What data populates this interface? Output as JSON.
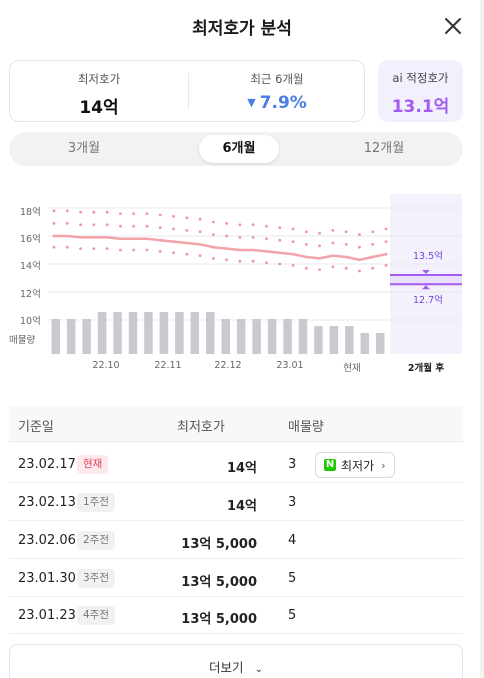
{
  "header": {
    "title": "최저호가 분석"
  },
  "summary": {
    "lowest_label": "최저호가",
    "lowest_value": "14억",
    "recent_label": "최근 6개월",
    "recent_value": "7.9%",
    "ai_label": "ai 적정호가",
    "ai_value": "13.1억"
  },
  "tabs": [
    "3개월",
    "6개월",
    "12개월"
  ],
  "active_tab": "6개월",
  "chart_data": {
    "type": "line",
    "y_ticks": [
      "18억",
      "16억",
      "14억",
      "12억",
      "10억"
    ],
    "ylim": [
      10,
      18
    ],
    "volume_label": "매물량",
    "x_ticks": [
      "22.10",
      "22.11",
      "22.12",
      "23.01",
      "현재",
      "2개월 후"
    ],
    "price_line": [
      16.0,
      16.0,
      15.9,
      15.9,
      15.9,
      15.8,
      15.8,
      15.8,
      15.7,
      15.6,
      15.5,
      15.4,
      15.2,
      15.1,
      15.0,
      15.0,
      14.9,
      14.8,
      14.7,
      14.5,
      14.4,
      14.6,
      14.5,
      14.3,
      14.5,
      14.7
    ],
    "volume_bars": [
      5,
      5,
      5,
      6,
      6,
      6,
      6,
      6,
      6,
      6,
      6,
      5,
      5,
      5,
      5,
      5,
      5,
      4,
      4,
      4,
      3,
      3
    ],
    "ai_high": "13.5억",
    "ai_low": "12.7억",
    "colors": {
      "line": "#f3a4a8",
      "dots": "#e66b7a",
      "bars": "#c8cad0",
      "ai_band": "#a25cf0",
      "ai_bg": "#f4f0fc"
    }
  },
  "table": {
    "headers": [
      "기준일",
      "최저호가",
      "매물량"
    ],
    "rows": [
      {
        "date": "23.02.17",
        "badge": "현재",
        "price": "14억",
        "count": "3",
        "button": "최저가"
      },
      {
        "date": "23.02.13",
        "badge": "1주전",
        "price": "14억",
        "count": "3"
      },
      {
        "date": "23.02.06",
        "badge": "2주전",
        "price": "13억 5,000",
        "count": "4"
      },
      {
        "date": "23.01.30",
        "badge": "3주전",
        "price": "13억 5,000",
        "count": "5"
      },
      {
        "date": "23.01.23",
        "badge": "4주전",
        "price": "13억 5,000",
        "count": "5"
      }
    ]
  },
  "more": {
    "label": "더보기"
  }
}
